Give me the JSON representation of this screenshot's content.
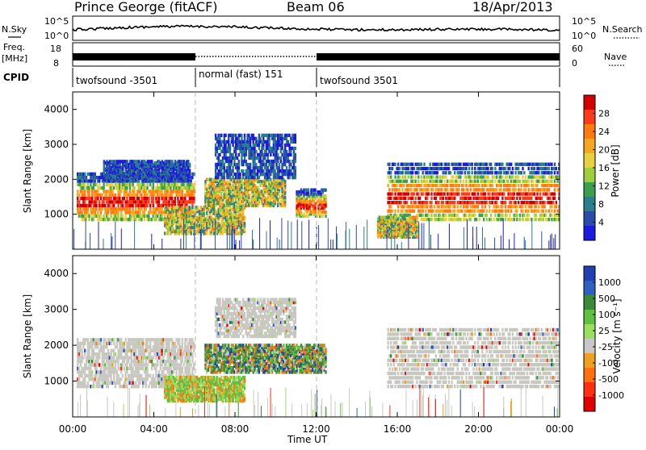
{
  "header": {
    "station": "Prince George (fitACF)",
    "beam": "Beam 06",
    "date": "18/Apr/2013"
  },
  "noise_panel": {
    "left_label": "N.Sky",
    "right_label": "N.Search",
    "left_ticks": [
      "10^5",
      "10^0"
    ],
    "right_ticks": [
      "10^5",
      "10^0"
    ]
  },
  "freq_panel": {
    "left_label_1": "Freq.",
    "left_label_2": "[MHz]",
    "left_ticks": [
      "18",
      "8"
    ],
    "right_label": "Nave",
    "right_ticks": [
      "60",
      "0"
    ]
  },
  "cpid": {
    "label": "CPID",
    "segments": [
      {
        "label": "twofsound -3501",
        "start": 0,
        "end": 6
      },
      {
        "label": "normal (fast) 151",
        "start": 6,
        "end": 12
      },
      {
        "label": "twofsound 3501",
        "start": 12,
        "end": 24
      }
    ]
  },
  "chart_data": [
    {
      "type": "heatmap",
      "title": "Power",
      "ylabel": "Slant Range [km]",
      "ylim": [
        0,
        4500
      ],
      "yticks": [
        "4000",
        "3000",
        "2000",
        "1000"
      ],
      "xlim": [
        0,
        24
      ],
      "colorbar_label": "Power [dB]",
      "colorbar_ticks": [
        "28",
        "24",
        "20",
        "16",
        "12",
        "8",
        "4"
      ],
      "colorbar_colors": [
        "#d40000",
        "#ff3a1a",
        "#ff7a10",
        "#f5a623",
        "#e8d040",
        "#9ecf3a",
        "#3aa050",
        "#2a7f8c",
        "#2a4ba8",
        "#1a1ae0"
      ],
      "echo_regions": [
        {
          "t0": 0.2,
          "t1": 6.0,
          "r0": 800,
          "r1": 2200,
          "level": "high"
        },
        {
          "t0": 1.5,
          "t1": 5.8,
          "r0": 1900,
          "r1": 2500,
          "level": "low"
        },
        {
          "t0": 4.5,
          "t1": 8.5,
          "r0": 400,
          "r1": 1200,
          "level": "mid"
        },
        {
          "t0": 6.5,
          "t1": 10.5,
          "r0": 1200,
          "r1": 2000,
          "level": "mid"
        },
        {
          "t0": 7.0,
          "t1": 11.0,
          "r0": 2000,
          "r1": 3300,
          "level": "low"
        },
        {
          "t0": 11.0,
          "t1": 12.5,
          "r0": 900,
          "r1": 1700,
          "level": "high"
        },
        {
          "t0": 15.5,
          "t1": 24.0,
          "r0": 800,
          "r1": 2500,
          "level": "high"
        },
        {
          "t0": 15.0,
          "t1": 17.0,
          "r0": 300,
          "r1": 900,
          "level": "mid"
        }
      ]
    },
    {
      "type": "heatmap",
      "title": "Velocity",
      "ylabel": "Slant Range [km]",
      "ylim": [
        0,
        4500
      ],
      "yticks": [
        "4000",
        "3000",
        "2000",
        "1000"
      ],
      "xlim": [
        0,
        24
      ],
      "colorbar_label": "Velocity [m s⁻¹]",
      "colorbar_ticks": [
        "1000",
        "500",
        "100",
        "25",
        "-25",
        "-100",
        "-500",
        "-1000"
      ],
      "colorbar_colors": [
        "#2040b0",
        "#3060c0",
        "#3a8a3a",
        "#60c040",
        "#9ae060",
        "#c8c8c8",
        "#f0a020",
        "#ff7010",
        "#ff3010",
        "#e00000"
      ],
      "echo_regions": [
        {
          "t0": 0.2,
          "t1": 6.0,
          "r0": 800,
          "r1": 2200,
          "level": "ground"
        },
        {
          "t0": 4.5,
          "t1": 8.5,
          "r0": 400,
          "r1": 1100,
          "level": "green"
        },
        {
          "t0": 6.5,
          "t1": 12.5,
          "r0": 1200,
          "r1": 2000,
          "level": "mixed"
        },
        {
          "t0": 7.0,
          "t1": 11.0,
          "r0": 2200,
          "r1": 3300,
          "level": "ground"
        },
        {
          "t0": 15.5,
          "t1": 24.0,
          "r0": 800,
          "r1": 2500,
          "level": "ground"
        }
      ]
    }
  ],
  "x_axis": {
    "ticks": [
      "00:00",
      "04:00",
      "08:00",
      "12:00",
      "16:00",
      "20:00",
      "00:00"
    ],
    "label": "Time UT"
  }
}
